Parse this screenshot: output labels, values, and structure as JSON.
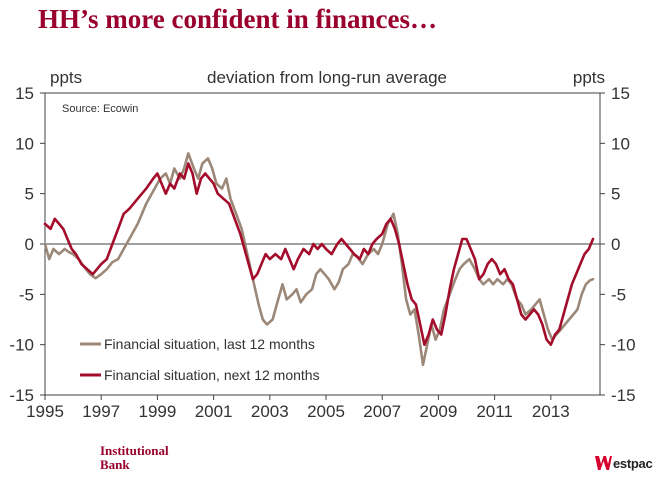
{
  "slide": {
    "title": "HH’s more confident in finances…",
    "footer_left_line1": "Institutional",
    "footer_left_line2": "Bank",
    "brand_name": "estpac"
  },
  "colors": {
    "title": "#99002e",
    "series_last": "#9c8878",
    "series_next": "#a30d2b",
    "axis": "#404040",
    "text": "#333333"
  },
  "chart_data": {
    "type": "line",
    "title": "deviation from long-run average",
    "ylabel_left": "ppts",
    "ylabel_right": "ppts",
    "source": "Source: Ecowin",
    "ylim": [
      -15,
      15
    ],
    "xlim": [
      1995,
      2014.75
    ],
    "yticks": [
      15,
      10,
      5,
      0,
      -5,
      -10,
      -15
    ],
    "ytick_labels": [
      "15",
      "10",
      "5",
      "0",
      "-5",
      "-10",
      "-15"
    ],
    "xticks": [
      1995,
      1997,
      1999,
      2001,
      2003,
      2005,
      2007,
      2009,
      2011,
      2013
    ],
    "xtick_labels": [
      "1995",
      "1997",
      "1999",
      "2001",
      "2003",
      "2005",
      "2007",
      "2009",
      "2011",
      "2013"
    ],
    "legend_position": "bottom-left",
    "series": [
      {
        "name": "Financial situation, last 12 months",
        "color": "#9c8878",
        "points": [
          [
            1995.0,
            0.0
          ],
          [
            1995.15,
            -1.5
          ],
          [
            1995.3,
            -0.5
          ],
          [
            1995.5,
            -1.0
          ],
          [
            1995.7,
            -0.5
          ],
          [
            1995.85,
            -0.8
          ],
          [
            1996.0,
            -1.0
          ],
          [
            1996.2,
            -1.5
          ],
          [
            1996.4,
            -2.3
          ],
          [
            1996.6,
            -3.0
          ],
          [
            1996.8,
            -3.4
          ],
          [
            1997.0,
            -3.0
          ],
          [
            1997.2,
            -2.5
          ],
          [
            1997.4,
            -1.8
          ],
          [
            1997.6,
            -1.5
          ],
          [
            1997.8,
            -0.5
          ],
          [
            1998.0,
            0.5
          ],
          [
            1998.3,
            2.0
          ],
          [
            1998.6,
            4.0
          ],
          [
            1998.9,
            5.5
          ],
          [
            1999.1,
            6.5
          ],
          [
            1999.3,
            7.0
          ],
          [
            1999.45,
            6.0
          ],
          [
            1999.6,
            7.5
          ],
          [
            1999.8,
            6.5
          ],
          [
            1999.95,
            7.5
          ],
          [
            2000.1,
            9.0
          ],
          [
            2000.3,
            7.5
          ],
          [
            2000.45,
            6.5
          ],
          [
            2000.6,
            8.0
          ],
          [
            2000.8,
            8.5
          ],
          [
            2000.95,
            7.5
          ],
          [
            2001.1,
            6.0
          ],
          [
            2001.3,
            5.5
          ],
          [
            2001.45,
            6.5
          ],
          [
            2001.6,
            4.5
          ],
          [
            2001.8,
            3.0
          ],
          [
            2002.0,
            1.5
          ],
          [
            2002.2,
            -1.0
          ],
          [
            2002.4,
            -3.5
          ],
          [
            2002.6,
            -6.0
          ],
          [
            2002.75,
            -7.5
          ],
          [
            2002.9,
            -8.0
          ],
          [
            2003.1,
            -7.5
          ],
          [
            2003.3,
            -5.5
          ],
          [
            2003.45,
            -4.0
          ],
          [
            2003.6,
            -5.5
          ],
          [
            2003.8,
            -5.0
          ],
          [
            2003.95,
            -4.5
          ],
          [
            2004.1,
            -5.8
          ],
          [
            2004.3,
            -5.0
          ],
          [
            2004.5,
            -4.5
          ],
          [
            2004.65,
            -3.0
          ],
          [
            2004.8,
            -2.5
          ],
          [
            2004.95,
            -3.0
          ],
          [
            2005.1,
            -3.5
          ],
          [
            2005.3,
            -4.5
          ],
          [
            2005.45,
            -3.8
          ],
          [
            2005.6,
            -2.5
          ],
          [
            2005.8,
            -2.0
          ],
          [
            2005.95,
            -1.0
          ],
          [
            2006.1,
            -1.2
          ],
          [
            2006.3,
            -2.0
          ],
          [
            2006.5,
            -1.0
          ],
          [
            2006.7,
            -0.5
          ],
          [
            2006.85,
            -1.0
          ],
          [
            2007.0,
            0.0
          ],
          [
            2007.2,
            2.0
          ],
          [
            2007.4,
            3.0
          ],
          [
            2007.55,
            1.0
          ],
          [
            2007.7,
            -2.0
          ],
          [
            2007.85,
            -5.5
          ],
          [
            2008.0,
            -7.0
          ],
          [
            2008.15,
            -6.5
          ],
          [
            2008.3,
            -9.0
          ],
          [
            2008.45,
            -12.0
          ],
          [
            2008.6,
            -10.0
          ],
          [
            2008.75,
            -8.0
          ],
          [
            2008.9,
            -9.5
          ],
          [
            2009.05,
            -8.5
          ],
          [
            2009.2,
            -6.5
          ],
          [
            2009.4,
            -5.0
          ],
          [
            2009.6,
            -3.5
          ],
          [
            2009.75,
            -2.5
          ],
          [
            2009.9,
            -2.0
          ],
          [
            2010.1,
            -1.5
          ],
          [
            2010.3,
            -2.5
          ],
          [
            2010.45,
            -3.5
          ],
          [
            2010.6,
            -4.0
          ],
          [
            2010.8,
            -3.5
          ],
          [
            2010.95,
            -4.0
          ],
          [
            2011.1,
            -3.5
          ],
          [
            2011.3,
            -4.0
          ],
          [
            2011.45,
            -3.5
          ],
          [
            2011.6,
            -4.0
          ],
          [
            2011.8,
            -5.5
          ],
          [
            2011.95,
            -6.0
          ],
          [
            2012.1,
            -7.0
          ],
          [
            2012.3,
            -6.5
          ],
          [
            2012.45,
            -6.0
          ],
          [
            2012.6,
            -5.5
          ],
          [
            2012.75,
            -7.0
          ],
          [
            2012.9,
            -8.5
          ],
          [
            2013.05,
            -9.5
          ],
          [
            2013.2,
            -9.0
          ],
          [
            2013.35,
            -8.5
          ],
          [
            2013.5,
            -8.0
          ],
          [
            2013.65,
            -7.5
          ],
          [
            2013.8,
            -7.0
          ],
          [
            2013.95,
            -6.5
          ],
          [
            2014.1,
            -5.0
          ],
          [
            2014.25,
            -4.0
          ],
          [
            2014.4,
            -3.6
          ],
          [
            2014.5,
            -3.5
          ]
        ]
      },
      {
        "name": "Financial situation, next 12 months",
        "color": "#a30d2b",
        "points": [
          [
            1995.0,
            2.0
          ],
          [
            1995.2,
            1.5
          ],
          [
            1995.35,
            2.5
          ],
          [
            1995.5,
            2.0
          ],
          [
            1995.65,
            1.5
          ],
          [
            1995.8,
            0.5
          ],
          [
            1995.95,
            -0.5
          ],
          [
            1996.1,
            -1.0
          ],
          [
            1996.3,
            -2.0
          ],
          [
            1996.5,
            -2.5
          ],
          [
            1996.7,
            -3.0
          ],
          [
            1996.85,
            -2.5
          ],
          [
            1997.0,
            -2.0
          ],
          [
            1997.2,
            -1.5
          ],
          [
            1997.4,
            0.0
          ],
          [
            1997.6,
            1.5
          ],
          [
            1997.8,
            3.0
          ],
          [
            1998.0,
            3.5
          ],
          [
            1998.3,
            4.5
          ],
          [
            1998.6,
            5.5
          ],
          [
            1998.85,
            6.5
          ],
          [
            1999.0,
            7.0
          ],
          [
            1999.15,
            6.0
          ],
          [
            1999.3,
            5.0
          ],
          [
            1999.45,
            6.0
          ],
          [
            1999.6,
            5.5
          ],
          [
            1999.8,
            7.0
          ],
          [
            1999.95,
            6.5
          ],
          [
            2000.1,
            8.0
          ],
          [
            2000.25,
            7.0
          ],
          [
            2000.4,
            5.0
          ],
          [
            2000.55,
            6.5
          ],
          [
            2000.7,
            7.0
          ],
          [
            2000.85,
            6.5
          ],
          [
            2001.0,
            6.0
          ],
          [
            2001.15,
            5.0
          ],
          [
            2001.35,
            4.5
          ],
          [
            2001.55,
            4.0
          ],
          [
            2001.75,
            2.5
          ],
          [
            2001.95,
            1.0
          ],
          [
            2002.1,
            -0.5
          ],
          [
            2002.25,
            -2.0
          ],
          [
            2002.4,
            -3.5
          ],
          [
            2002.55,
            -3.0
          ],
          [
            2002.7,
            -2.0
          ],
          [
            2002.85,
            -1.0
          ],
          [
            2003.0,
            -1.5
          ],
          [
            2003.2,
            -1.0
          ],
          [
            2003.4,
            -1.5
          ],
          [
            2003.55,
            -0.5
          ],
          [
            2003.7,
            -1.5
          ],
          [
            2003.85,
            -2.5
          ],
          [
            2004.0,
            -1.5
          ],
          [
            2004.2,
            -0.5
          ],
          [
            2004.4,
            -1.0
          ],
          [
            2004.55,
            0.0
          ],
          [
            2004.7,
            -0.5
          ],
          [
            2004.85,
            0.0
          ],
          [
            2005.0,
            -0.5
          ],
          [
            2005.2,
            -1.0
          ],
          [
            2005.4,
            0.0
          ],
          [
            2005.55,
            0.5
          ],
          [
            2005.7,
            0.0
          ],
          [
            2005.85,
            -0.5
          ],
          [
            2006.0,
            -1.0
          ],
          [
            2006.2,
            -1.5
          ],
          [
            2006.35,
            -0.5
          ],
          [
            2006.5,
            -1.0
          ],
          [
            2006.65,
            0.0
          ],
          [
            2006.8,
            0.5
          ],
          [
            2007.0,
            1.0
          ],
          [
            2007.15,
            2.0
          ],
          [
            2007.3,
            2.5
          ],
          [
            2007.45,
            1.5
          ],
          [
            2007.6,
            0.0
          ],
          [
            2007.75,
            -2.0
          ],
          [
            2007.9,
            -4.0
          ],
          [
            2008.05,
            -5.5
          ],
          [
            2008.2,
            -6.0
          ],
          [
            2008.35,
            -8.0
          ],
          [
            2008.5,
            -10.0
          ],
          [
            2008.65,
            -9.0
          ],
          [
            2008.8,
            -7.5
          ],
          [
            2008.95,
            -8.5
          ],
          [
            2009.1,
            -9.0
          ],
          [
            2009.25,
            -7.0
          ],
          [
            2009.4,
            -4.5
          ],
          [
            2009.55,
            -2.5
          ],
          [
            2009.7,
            -1.0
          ],
          [
            2009.85,
            0.5
          ],
          [
            2010.0,
            0.5
          ],
          [
            2010.15,
            -0.5
          ],
          [
            2010.3,
            -1.5
          ],
          [
            2010.45,
            -3.5
          ],
          [
            2010.6,
            -3.0
          ],
          [
            2010.75,
            -2.0
          ],
          [
            2010.9,
            -1.5
          ],
          [
            2011.05,
            -2.0
          ],
          [
            2011.2,
            -3.0
          ],
          [
            2011.35,
            -2.5
          ],
          [
            2011.5,
            -3.5
          ],
          [
            2011.65,
            -4.0
          ],
          [
            2011.8,
            -5.5
          ],
          [
            2011.95,
            -7.0
          ],
          [
            2012.1,
            -7.5
          ],
          [
            2012.25,
            -7.0
          ],
          [
            2012.4,
            -6.5
          ],
          [
            2012.55,
            -7.0
          ],
          [
            2012.7,
            -8.0
          ],
          [
            2012.85,
            -9.5
          ],
          [
            2013.0,
            -10.0
          ],
          [
            2013.15,
            -9.0
          ],
          [
            2013.3,
            -8.5
          ],
          [
            2013.45,
            -7.0
          ],
          [
            2013.6,
            -5.5
          ],
          [
            2013.75,
            -4.0
          ],
          [
            2013.9,
            -3.0
          ],
          [
            2014.05,
            -2.0
          ],
          [
            2014.2,
            -1.0
          ],
          [
            2014.35,
            -0.5
          ],
          [
            2014.5,
            0.5
          ]
        ]
      }
    ]
  }
}
